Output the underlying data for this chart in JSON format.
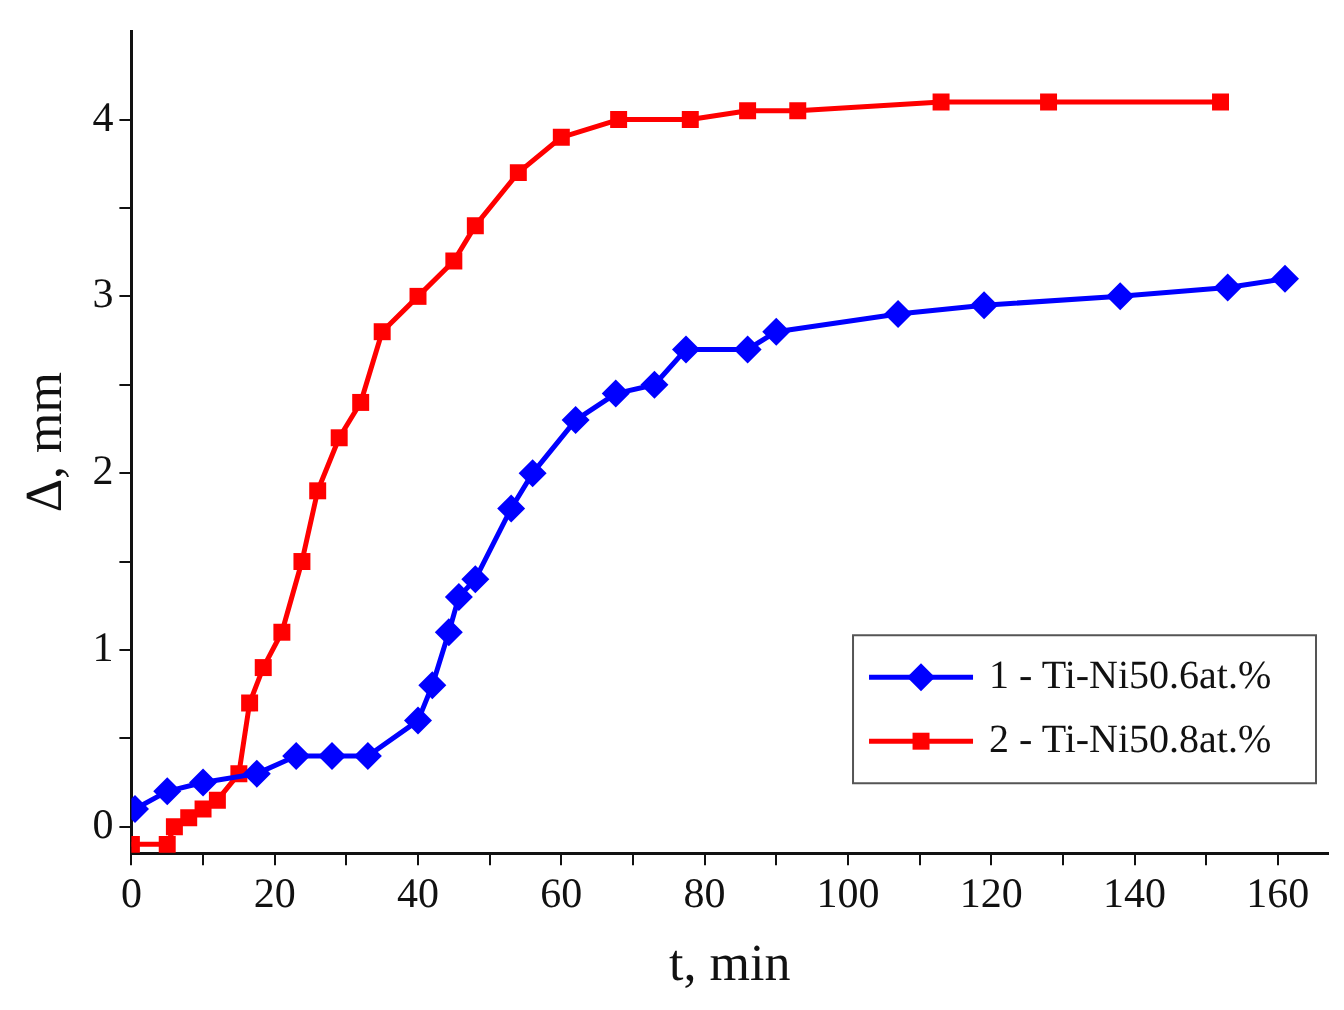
{
  "chart_data": {
    "type": "line",
    "xlabel": "t, min",
    "ylabel": "Δ, mm",
    "xlim": [
      0,
      167
    ],
    "ylim": [
      -0.15,
      4.5
    ],
    "xticks": [
      0,
      {
        "value": 10,
        "label": null
      },
      20,
      {
        "value": 30,
        "label": null
      },
      40,
      {
        "value": 50,
        "label": null
      },
      60,
      {
        "value": 70,
        "label": null
      },
      80,
      {
        "value": 90,
        "label": null
      },
      100,
      {
        "value": 110,
        "label": null
      },
      120,
      {
        "value": 130,
        "label": null
      },
      140,
      {
        "value": 150,
        "label": null
      },
      160
    ],
    "yticks": [
      0,
      {
        "value": 0.5,
        "label": null
      },
      1,
      {
        "value": 1.5,
        "label": null
      },
      2,
      {
        "value": 2.5,
        "label": null
      },
      3,
      {
        "value": 3.5,
        "label": null
      },
      4
    ],
    "grid": false,
    "legend": "bottom right",
    "line_style": "solid",
    "series": [
      {
        "name": "1 - Ti-Ni50.6at.%",
        "color": "#0000ff",
        "marker": "diamond",
        "x": [
          0.5,
          5,
          10,
          17.5,
          23,
          28,
          33,
          40,
          42,
          44.3,
          45.7,
          48,
          53,
          56,
          62,
          67.6,
          73,
          77.4,
          86,
          90,
          107,
          119,
          138,
          153,
          161
        ],
        "values": [
          0.1,
          0.2,
          0.25,
          0.3,
          0.4,
          0.4,
          0.4,
          0.6,
          0.8,
          1.1,
          1.3,
          1.4,
          1.8,
          2.0,
          2.3,
          2.45,
          2.5,
          2.7,
          2.7,
          2.8,
          2.9,
          2.95,
          3.0,
          3.05,
          3.1
        ]
      },
      {
        "name": "2 - Ti-Ni50.8at.%",
        "color": "#ff0000",
        "marker": "square",
        "x": [
          0,
          5,
          6,
          8,
          10,
          12,
          15,
          16.5,
          18.4,
          21,
          23.8,
          26,
          29,
          32,
          35,
          40,
          45,
          48,
          54,
          60,
          68,
          78,
          86,
          93,
          113,
          128,
          152
        ],
        "values": [
          -0.1,
          -0.1,
          0,
          0.05,
          0.1,
          0.15,
          0.3,
          0.7,
          0.9,
          1.1,
          1.5,
          1.9,
          2.2,
          2.4,
          2.8,
          3.0,
          3.2,
          3.4,
          3.7,
          3.9,
          4.0,
          4.0,
          4.05,
          4.05,
          4.1,
          4.1,
          4.1
        ]
      }
    ]
  }
}
